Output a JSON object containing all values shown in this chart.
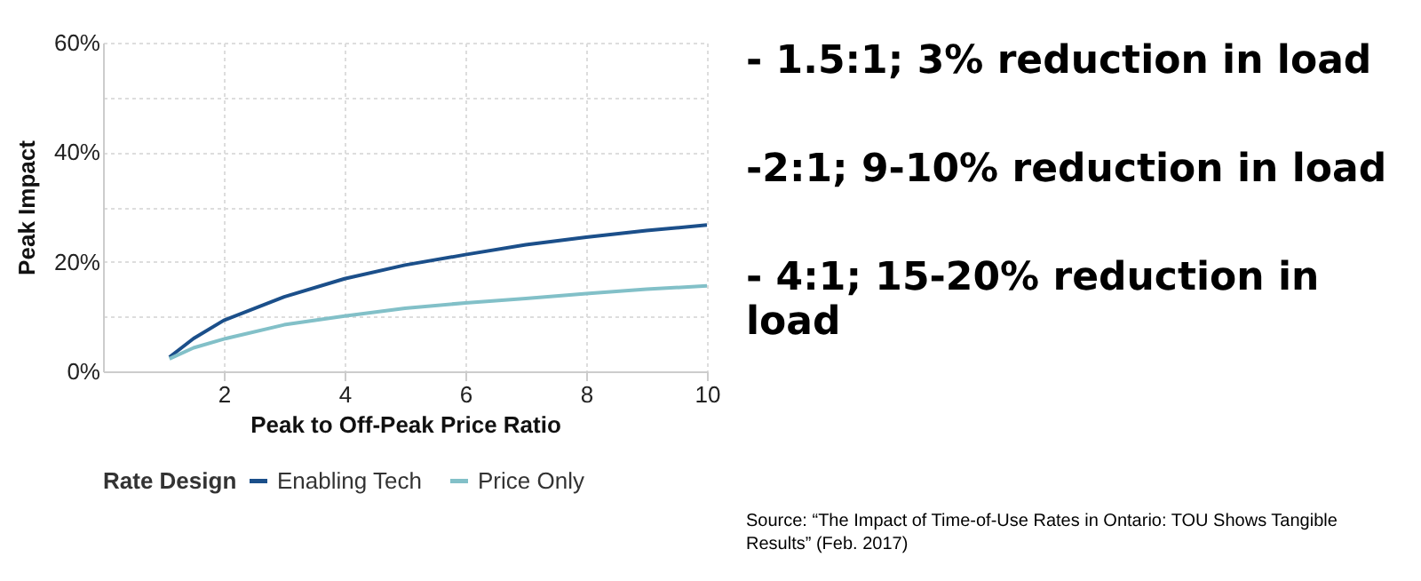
{
  "chart_data": {
    "type": "line",
    "xlabel": "Peak to Off-Peak Price Ratio",
    "ylabel": "Peak Impact",
    "legend_title": "Rate Design",
    "legend": "bottom",
    "grid": true,
    "xlim": [
      0,
      10
    ],
    "xticks": [
      2,
      4,
      6,
      8,
      10
    ],
    "ylim": [
      0,
      60
    ],
    "yticks": [
      {
        "value": 0,
        "label": "0%"
      },
      {
        "value": 10,
        "label": null
      },
      {
        "value": 20,
        "label": "20%"
      },
      {
        "value": 30,
        "label": null
      },
      {
        "value": 40,
        "label": "40%"
      },
      {
        "value": 50,
        "label": null
      },
      {
        "value": 60,
        "label": "60%"
      }
    ],
    "x": [
      1.1,
      1.5,
      2,
      3,
      4,
      5,
      6,
      7,
      8,
      9,
      10
    ],
    "series": [
      {
        "name": "Enabling Tech",
        "color": "#1b4f8a",
        "values": [
          2.6,
          6,
          9.3,
          13.6,
          16.9,
          19.4,
          21.3,
          23.1,
          24.5,
          25.7,
          26.7
        ]
      },
      {
        "name": "Price Only",
        "color": "#82c0c8",
        "values": [
          2.3,
          4.3,
          5.9,
          8.5,
          10.1,
          11.5,
          12.5,
          13.3,
          14.2,
          15.0,
          15.6
        ]
      }
    ],
    "annotations": [
      "- 1.5:1; 3% reduction in load",
      "-2:1; 9-10% reduction in load",
      "- 4:1; 15-20% reduction in load",
      "Source: “The Impact of Time-of-Use Rates in Ontario: TOU Shows Tangible Results” (Feb. 2017)"
    ]
  }
}
